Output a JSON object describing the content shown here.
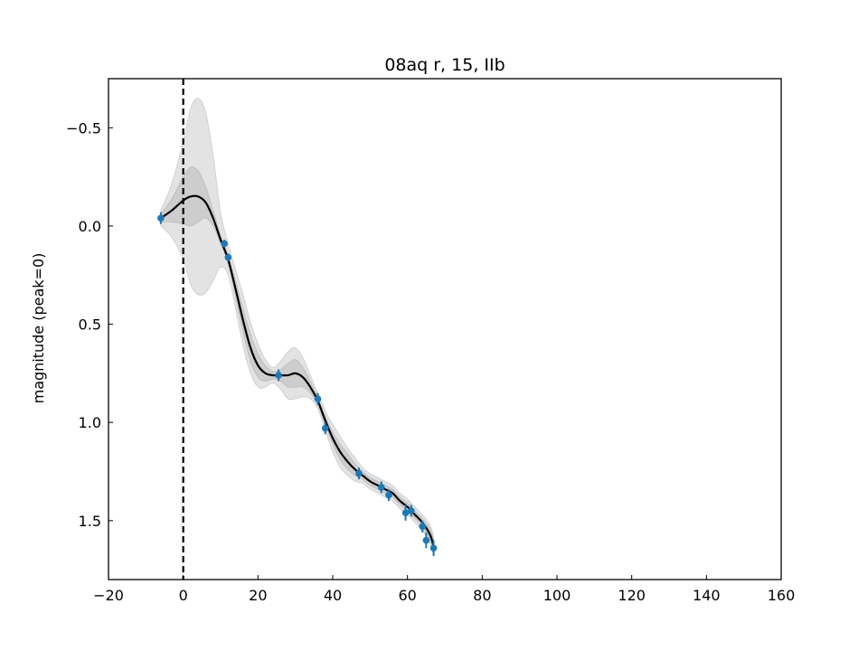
{
  "chart_data": {
    "type": "line",
    "title": "08aq r, 15, IIb",
    "xlabel": "",
    "ylabel": "magnitude (peak=0)",
    "xlim": [
      -20,
      160
    ],
    "ylim": [
      1.8,
      -0.75
    ],
    "y_inverted": true,
    "xticks": [
      -20,
      0,
      20,
      40,
      60,
      80,
      100,
      120,
      140,
      160
    ],
    "xtick_labels": [
      "−20",
      "0",
      "20",
      "40",
      "60",
      "80",
      "100",
      "120",
      "140",
      "160"
    ],
    "yticks": [
      -0.5,
      0.0,
      0.5,
      1.0,
      1.5
    ],
    "ytick_labels": [
      "−0.5",
      "0.0",
      "0.5",
      "1.0",
      "1.5"
    ],
    "peak_marker_x": 0,
    "colors": {
      "points": "#1f77b4",
      "fit": "#000000",
      "band": "#808080",
      "peak_line": "#000000"
    },
    "observations": {
      "name": "r-band photometry",
      "x": [
        -6,
        11,
        12,
        25.5,
        36,
        38,
        47,
        53,
        55,
        59.5,
        61,
        64,
        65,
        67
      ],
      "y": [
        -0.04,
        0.09,
        0.16,
        0.76,
        0.88,
        1.03,
        1.26,
        1.33,
        1.37,
        1.46,
        1.45,
        1.53,
        1.6,
        1.64
      ],
      "yerr": [
        0.03,
        0.02,
        0.02,
        0.03,
        0.03,
        0.03,
        0.03,
        0.03,
        0.03,
        0.04,
        0.03,
        0.03,
        0.04,
        0.04
      ]
    },
    "gp_fit": {
      "name": "GP mean",
      "x": [
        -6,
        -3,
        0,
        2,
        4,
        6,
        8,
        10,
        12,
        14,
        16,
        18,
        20,
        22,
        24,
        26,
        28,
        30,
        32,
        34,
        36,
        38,
        40,
        42,
        44,
        46,
        48,
        50,
        52,
        54,
        56,
        58,
        60,
        62,
        64,
        66,
        67
      ],
      "y": [
        -0.04,
        -0.08,
        -0.13,
        -0.15,
        -0.15,
        -0.12,
        -0.04,
        0.07,
        0.17,
        0.32,
        0.48,
        0.62,
        0.71,
        0.75,
        0.76,
        0.76,
        0.76,
        0.75,
        0.77,
        0.82,
        0.89,
        0.99,
        1.08,
        1.15,
        1.2,
        1.24,
        1.27,
        1.3,
        1.32,
        1.34,
        1.36,
        1.4,
        1.43,
        1.47,
        1.51,
        1.57,
        1.63
      ],
      "band_1sigma": [
        0.02,
        0.06,
        0.12,
        0.15,
        0.13,
        0.08,
        0.04,
        0.02,
        0.02,
        0.04,
        0.06,
        0.07,
        0.06,
        0.04,
        0.02,
        0.03,
        0.06,
        0.07,
        0.05,
        0.03,
        0.02,
        0.02,
        0.03,
        0.04,
        0.04,
        0.03,
        0.02,
        0.02,
        0.02,
        0.02,
        0.02,
        0.02,
        0.02,
        0.02,
        0.02,
        0.03,
        0.03
      ],
      "band_2sigma": [
        0.04,
        0.14,
        0.3,
        0.45,
        0.5,
        0.46,
        0.32,
        0.14,
        0.08,
        0.1,
        0.13,
        0.13,
        0.11,
        0.07,
        0.04,
        0.07,
        0.12,
        0.13,
        0.1,
        0.06,
        0.04,
        0.05,
        0.07,
        0.08,
        0.07,
        0.06,
        0.04,
        0.04,
        0.04,
        0.04,
        0.04,
        0.04,
        0.04,
        0.04,
        0.04,
        0.05,
        0.05
      ]
    }
  }
}
